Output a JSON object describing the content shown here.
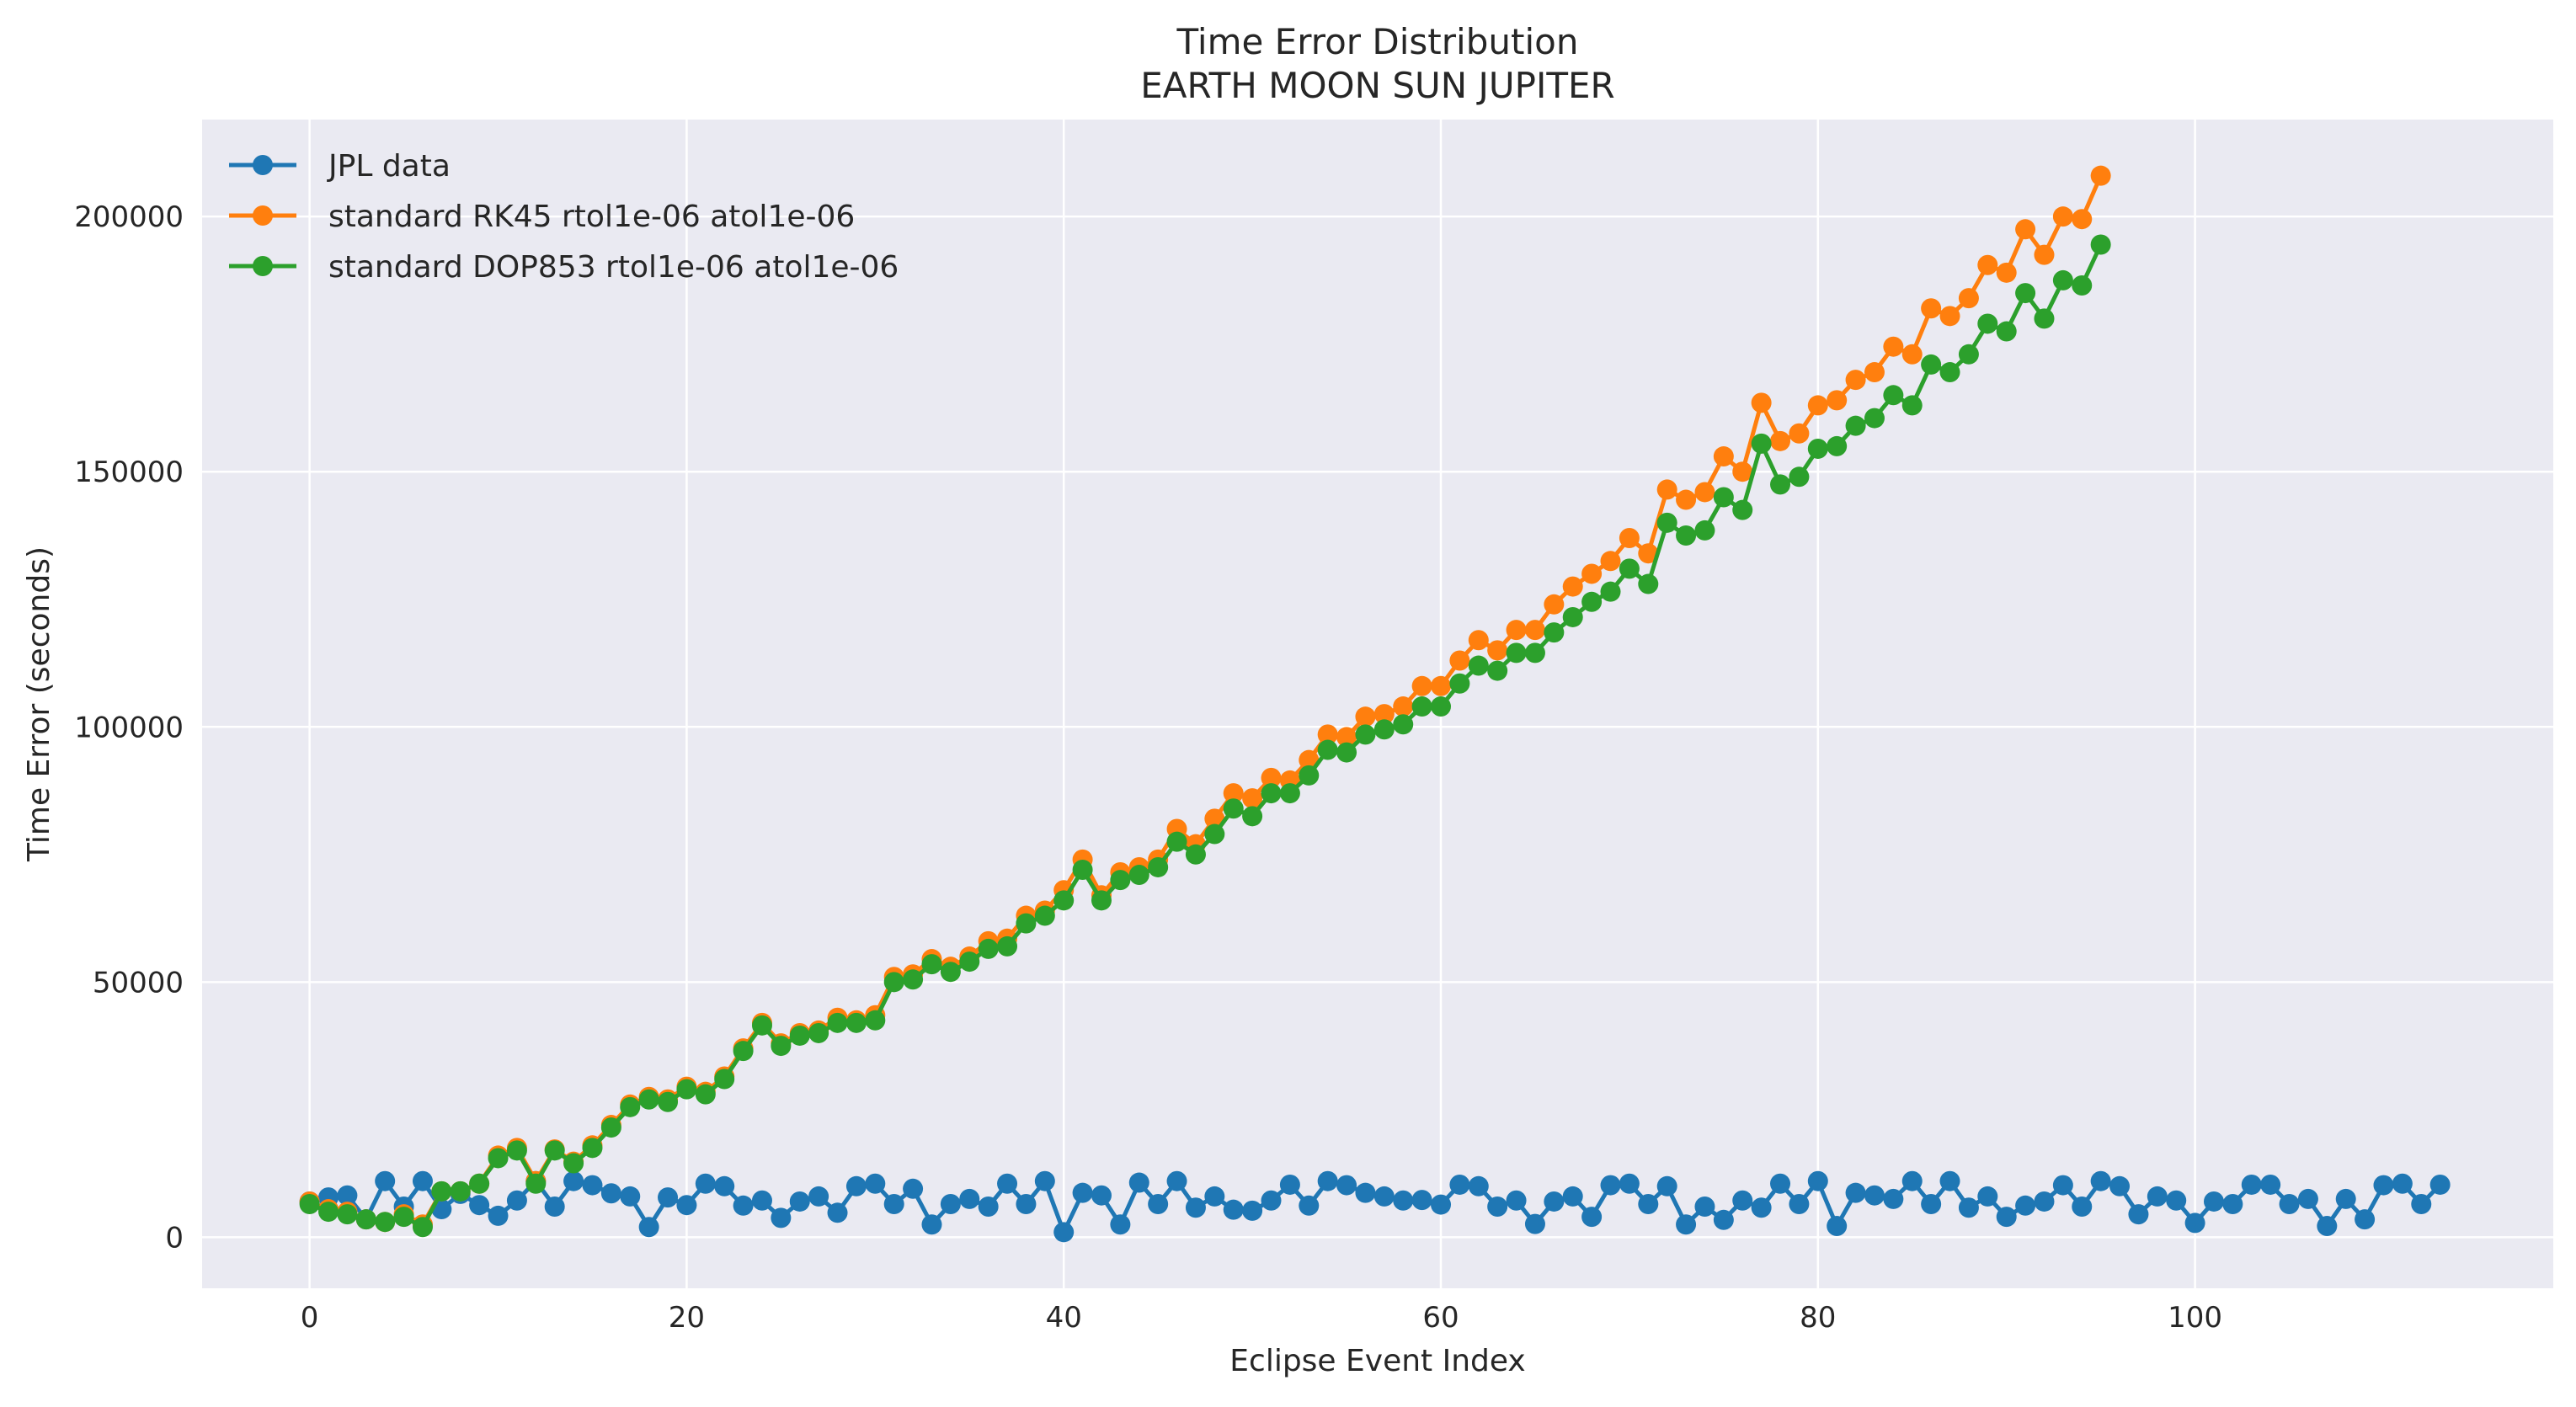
{
  "chart_data": {
    "type": "line",
    "title": "Time Error Distribution",
    "subtitle": "EARTH MOON SUN JUPITER",
    "xlabel": "Eclipse Event Index",
    "ylabel": "Time Error (seconds)",
    "xlim": [
      -5.7,
      119
    ],
    "ylim": [
      -10000,
      219000
    ],
    "xticks": [
      0,
      20,
      40,
      60,
      80,
      100
    ],
    "yticks": [
      0,
      50000,
      100000,
      150000,
      200000
    ],
    "xtick_labels": [
      "0",
      "20",
      "40",
      "60",
      "80",
      "100"
    ],
    "ytick_labels": [
      "0",
      "50000",
      "100000",
      "150000",
      "200000"
    ],
    "grid": true,
    "legend_position": "top-left",
    "series": [
      {
        "name": "JPL data",
        "color": "#1f77b4",
        "values": [
          7000,
          7800,
          8200,
          3500,
          11000,
          6000,
          11000,
          5500,
          8500,
          6300,
          4200,
          7200,
          11000,
          6000,
          11000,
          10200,
          8600,
          8000,
          2000,
          7800,
          6300,
          10500,
          10000,
          6200,
          7200,
          3800,
          7000,
          8000,
          4800,
          10000,
          10500,
          6500,
          9500,
          2500,
          6500,
          7500,
          6000,
          10500,
          6500,
          11000,
          1000,
          8700,
          8200,
          2500,
          10700,
          6500,
          11000,
          5800,
          8000,
          5400,
          5200,
          7200,
          10300,
          6200,
          11000,
          10200,
          8700,
          8000,
          7200,
          7300,
          6400,
          10300,
          10000,
          6000,
          7200,
          2600,
          7000,
          8000,
          4000,
          10200,
          10500,
          6500,
          10000,
          2500,
          6000,
          3400,
          7200,
          5800,
          10500,
          6500,
          11000,
          2200,
          8700,
          8200,
          7500,
          11000,
          6500,
          11000,
          5800,
          8000,
          4000,
          6200,
          7000,
          10200,
          6000,
          11000,
          10000,
          4500,
          8000,
          7200,
          2800,
          7000,
          6500,
          10300,
          10300,
          6500,
          7500,
          2200,
          7500,
          3500,
          10200,
          10500,
          6500,
          10300
        ]
      },
      {
        "name": "standard RK45 rtol1e-06 atol1e-06",
        "color": "#ff7f0e",
        "values": [
          7000,
          5500,
          5000,
          3500,
          3000,
          4500,
          2500,
          9000,
          9000,
          10500,
          16000,
          17500,
          11000,
          17200,
          14800,
          18000,
          22000,
          26000,
          27500,
          27000,
          29500,
          28500,
          31500,
          37000,
          42000,
          38000,
          40000,
          40500,
          43000,
          42500,
          43500,
          51000,
          51500,
          54500,
          53000,
          55000,
          58000,
          58500,
          63000,
          64000,
          68000,
          74000,
          67000,
          71500,
          72500,
          74000,
          80000,
          77000,
          82000,
          87000,
          86000,
          90000,
          89500,
          93500,
          98500,
          98000,
          102000,
          102500,
          104000,
          108000,
          108000,
          113000,
          117000,
          115000,
          119000,
          119000,
          124000,
          127500,
          130000,
          132500,
          137000,
          134000,
          146500,
          144500,
          146000,
          153000,
          150000,
          163500,
          156000,
          157500,
          163000,
          164000,
          168000,
          169500,
          174500,
          173000,
          182000,
          180500,
          184000,
          190500,
          189000,
          197500,
          192500,
          200000,
          199500,
          208000
        ]
      },
      {
        "name": "standard DOP853 rtol1e-06 atol1e-06",
        "color": "#2ca02c",
        "values": [
          6500,
          5000,
          4500,
          3500,
          3000,
          4000,
          2000,
          9000,
          9000,
          10500,
          15500,
          17000,
          10500,
          17000,
          14500,
          17500,
          21500,
          25500,
          27000,
          26500,
          29000,
          28000,
          31000,
          36500,
          41500,
          37500,
          39500,
          40000,
          42000,
          42000,
          42500,
          50000,
          50500,
          53500,
          52000,
          54000,
          56500,
          57000,
          61500,
          63000,
          66000,
          72000,
          66000,
          70000,
          71000,
          72500,
          77500,
          75000,
          79000,
          84000,
          82500,
          87000,
          87000,
          90500,
          95500,
          95000,
          98500,
          99500,
          100500,
          104000,
          104000,
          108500,
          112000,
          111000,
          114500,
          114500,
          118500,
          121500,
          124500,
          126500,
          131000,
          128000,
          140000,
          137500,
          138500,
          145000,
          142500,
          155500,
          147500,
          149000,
          154500,
          155000,
          159000,
          160500,
          165000,
          163000,
          171000,
          169500,
          173000,
          179000,
          177500,
          185000,
          180000,
          187500,
          186500,
          194500
        ]
      }
    ]
  }
}
